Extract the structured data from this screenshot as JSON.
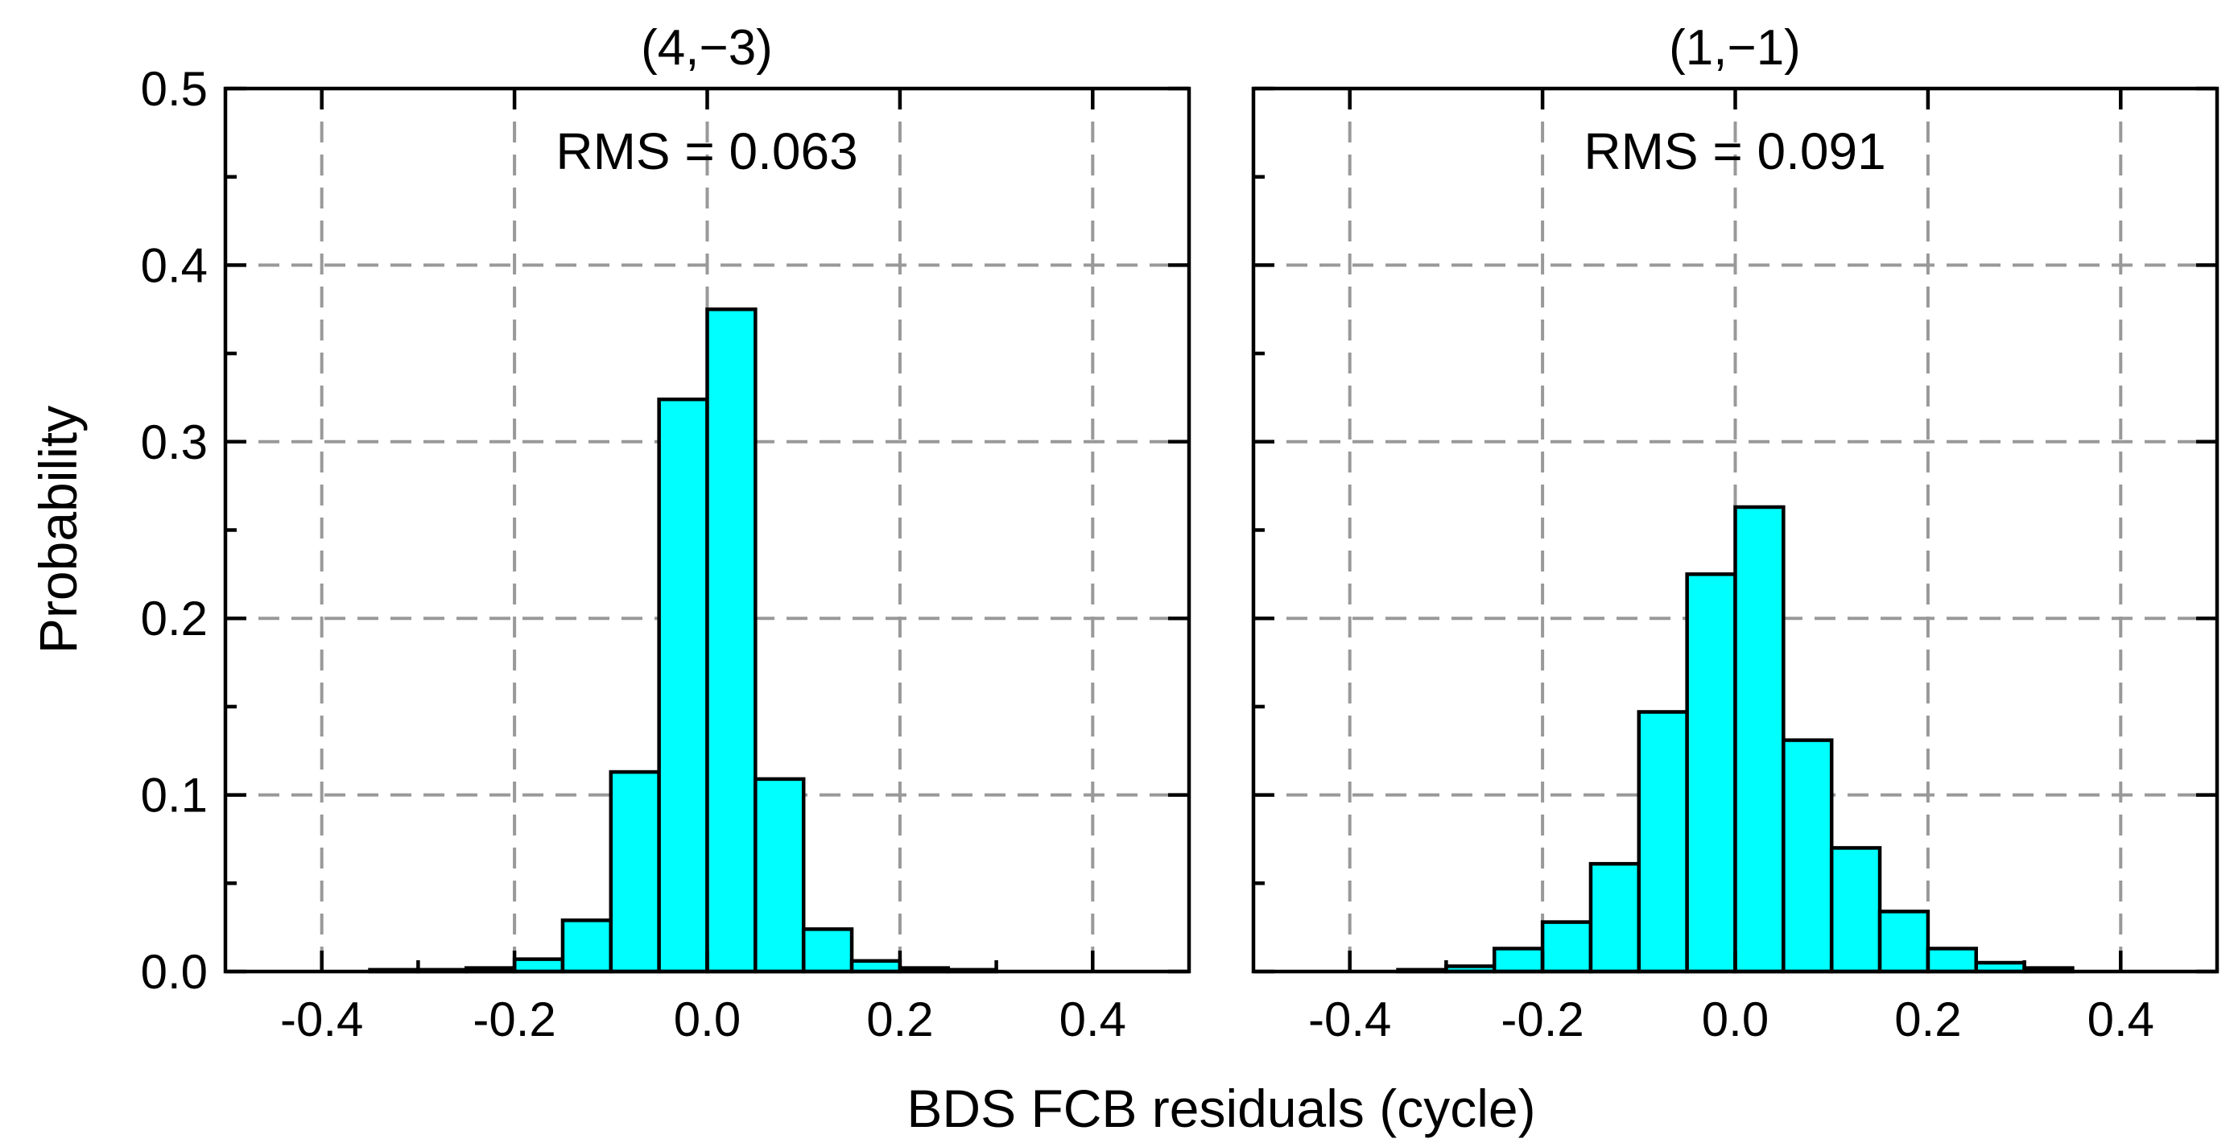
{
  "chart_data": [
    {
      "type": "bar",
      "title": "(4,−3)",
      "annotation": "RMS = 0.063",
      "bar_color": "#00ffff",
      "bin_width": 0.05,
      "bin_centers": [
        -0.425,
        -0.375,
        -0.325,
        -0.275,
        -0.225,
        -0.175,
        -0.125,
        -0.075,
        -0.025,
        0.025,
        0.075,
        0.125,
        0.175,
        0.225,
        0.275,
        0.325,
        0.375,
        0.425
      ],
      "values": [
        0.0,
        0.0,
        0.001,
        0.001,
        0.002,
        0.007,
        0.029,
        0.113,
        0.324,
        0.375,
        0.109,
        0.024,
        0.006,
        0.002,
        0.001,
        0.0,
        0.0,
        0.0
      ],
      "xlim": [
        -0.5,
        0.5
      ],
      "ylim": [
        0.0,
        0.5
      ],
      "xticks": [
        -0.4,
        -0.2,
        0.0,
        0.2,
        0.4
      ],
      "xtick_labels": [
        "-0.4",
        "-0.2",
        "0.0",
        "0.2",
        "0.4"
      ],
      "yticks": [
        0.0,
        0.1,
        0.2,
        0.3,
        0.4,
        0.5
      ],
      "ytick_labels": [
        "0.0",
        "0.1",
        "0.2",
        "0.3",
        "0.4",
        "0.5"
      ],
      "ylabel": "Probability",
      "grid": true
    },
    {
      "type": "bar",
      "title": "(1,−1)",
      "annotation": "RMS = 0.091",
      "bar_color": "#00ffff",
      "bin_width": 0.05,
      "bin_centers": [
        -0.425,
        -0.375,
        -0.325,
        -0.275,
        -0.225,
        -0.175,
        -0.125,
        -0.075,
        -0.025,
        0.025,
        0.075,
        0.125,
        0.175,
        0.225,
        0.275,
        0.325,
        0.375,
        0.425
      ],
      "values": [
        0.0,
        0.0,
        0.001,
        0.003,
        0.013,
        0.028,
        0.061,
        0.147,
        0.225,
        0.263,
        0.131,
        0.07,
        0.034,
        0.013,
        0.005,
        0.002,
        0.0,
        0.0
      ],
      "xlim": [
        -0.5,
        0.5
      ],
      "ylim": [
        0.0,
        0.5
      ],
      "xticks": [
        -0.4,
        -0.2,
        0.0,
        0.2,
        0.4
      ],
      "xtick_labels": [
        "-0.4",
        "-0.2",
        "0.0",
        "0.2",
        "0.4"
      ],
      "yticks": [
        0.0,
        0.1,
        0.2,
        0.3,
        0.4,
        0.5
      ],
      "ytick_labels": [
        "",
        "",
        "",
        "",
        "",
        ""
      ],
      "ylabel": "",
      "grid": true
    }
  ],
  "shared": {
    "xlabel": "BDS FCB residuals (cycle)"
  }
}
